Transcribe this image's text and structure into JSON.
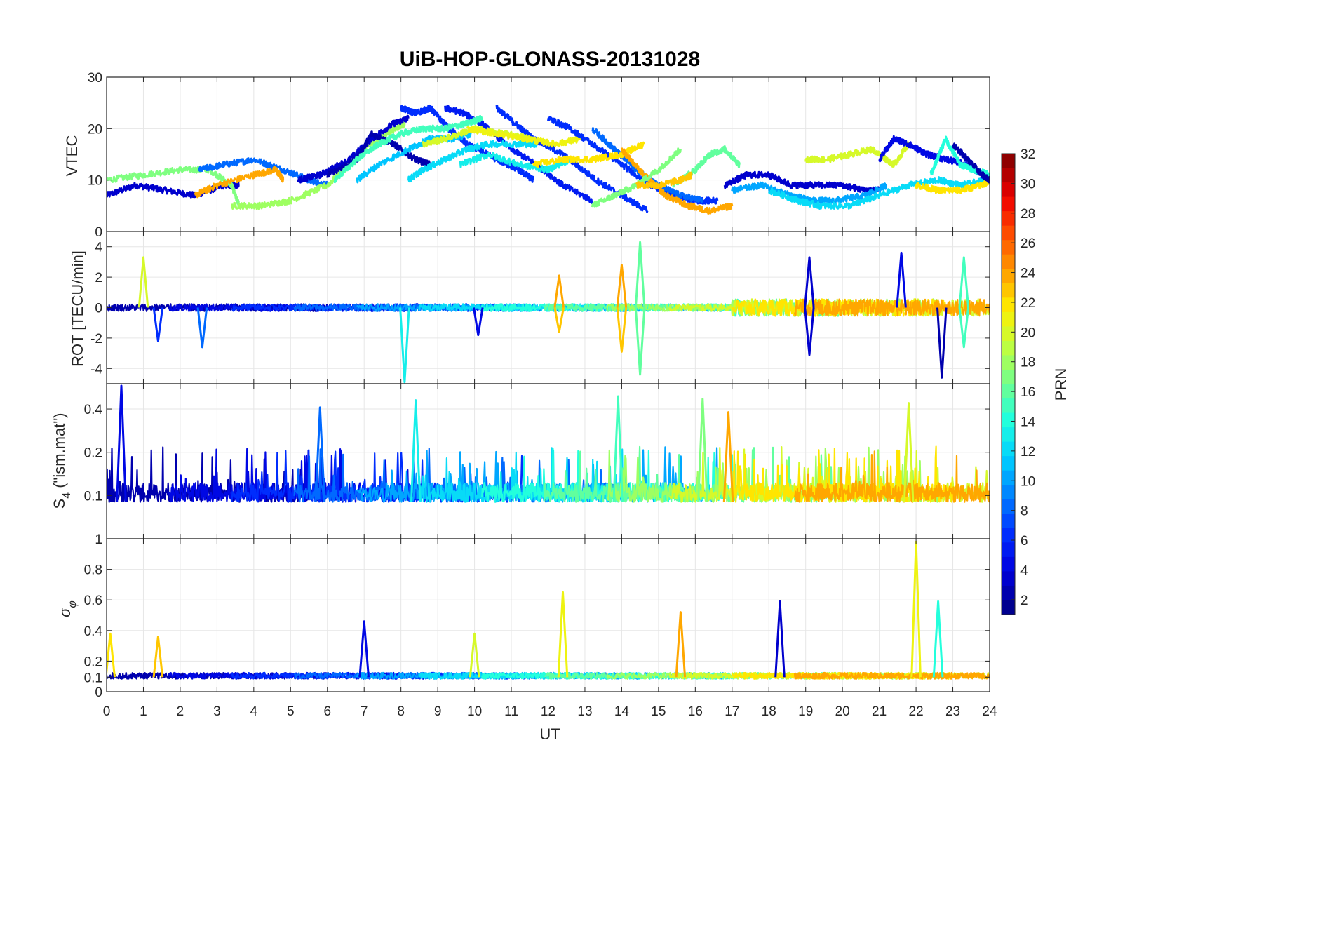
{
  "chart_data": {
    "type": "line",
    "title": "UiB-HOP-GLONASS-20131028",
    "xlabel": "UT",
    "xlim": [
      0,
      24
    ],
    "x_ticks": [
      "0",
      "1",
      "2",
      "3",
      "4",
      "5",
      "6",
      "7",
      "8",
      "9",
      "10",
      "11",
      "12",
      "13",
      "14",
      "15",
      "16",
      "17",
      "18",
      "19",
      "20",
      "21",
      "22",
      "23",
      "24"
    ],
    "colorbar": {
      "label": "PRN",
      "range": [
        1,
        32
      ],
      "ticks": [
        "2",
        "4",
        "6",
        "8",
        "10",
        "12",
        "14",
        "16",
        "18",
        "20",
        "22",
        "24",
        "26",
        "28",
        "30",
        "32"
      ],
      "colormap": [
        "#00008f",
        "#0000df",
        "#0030ff",
        "#0080ff",
        "#00cfff",
        "#20ffdf",
        "#70ff8f",
        "#bfff40",
        "#ffef00",
        "#ff9f00",
        "#ff5000",
        "#ef0000",
        "#8f0000"
      ]
    },
    "panels": [
      {
        "ylabel": "VTEC",
        "ylim": [
          0,
          30
        ],
        "y_ticks": [
          0,
          10,
          20,
          30
        ],
        "series": [
          {
            "prn": 3,
            "x": [
              0.0,
              0.8,
              1.6,
              2.4,
              3.2,
              3.6
            ],
            "y": [
              7,
              9,
              8,
              7,
              9,
              9
            ]
          },
          {
            "prn": 17,
            "x": [
              0.0,
              1.0,
              2.0,
              2.8,
              3.4,
              3.6
            ],
            "y": [
              10,
              11,
              12,
              12,
              9,
              5
            ]
          },
          {
            "prn": 8,
            "x": [
              2.5,
              3.2,
              4.0,
              4.8,
              5.5,
              6.0
            ],
            "y": [
              12,
              13,
              14,
              12,
              10,
              9
            ]
          },
          {
            "prn": 24,
            "x": [
              2.4,
              3.0,
              4.0,
              4.6,
              4.8
            ],
            "y": [
              7,
              9,
              11,
              12,
              10
            ]
          },
          {
            "prn": 18,
            "x": [
              3.4,
              4.2,
              5.0,
              6.0,
              6.6,
              7.0,
              7.6,
              8.1
            ],
            "y": [
              5,
              5,
              6,
              9,
              13,
              16,
              19,
              21
            ]
          },
          {
            "prn": 3,
            "x": [
              5.2,
              5.8,
              6.6,
              7.2,
              7.8,
              8.2
            ],
            "y": [
              10,
              11,
              14,
              18,
              21,
              22
            ]
          },
          {
            "prn": 2,
            "x": [
              6.0,
              6.8,
              7.2,
              7.8,
              8.4,
              8.8
            ],
            "y": [
              11,
              14,
              19,
              17,
              14,
              13
            ]
          },
          {
            "prn": 6,
            "x": [
              8.0,
              8.4,
              8.8,
              9.3,
              9.8,
              10.6,
              11.2,
              11.6
            ],
            "y": [
              24,
              23,
              24,
              20,
              17,
              14,
              12,
              10
            ]
          },
          {
            "prn": 5,
            "x": [
              9.2,
              9.7,
              10.2,
              11.0,
              11.7,
              12.4,
              13.2
            ],
            "y": [
              24,
              23,
              21,
              16,
              13,
              9,
              6
            ]
          },
          {
            "prn": 6,
            "x": [
              10.6,
              11.1,
              11.6,
              12.4,
              13.3,
              14.0,
              14.7
            ],
            "y": [
              24,
              21,
              18,
              15,
              10,
              7,
              4
            ]
          },
          {
            "prn": 15,
            "x": [
              6.2,
              6.8,
              7.4,
              8.0,
              8.6,
              9.2,
              9.8,
              10.2
            ],
            "y": [
              10,
              14,
              17,
              19,
              20,
              20,
              21,
              22
            ]
          },
          {
            "prn": 11,
            "x": [
              6.8,
              7.4,
              8.2,
              8.8,
              9.4,
              9.9
            ],
            "y": [
              10,
              13,
              16,
              18,
              18,
              19
            ]
          },
          {
            "prn": 12,
            "x": [
              8.2,
              8.6,
              9.2,
              9.8,
              10.4,
              11.2,
              11.7
            ],
            "y": [
              10,
              12,
              14,
              16,
              17,
              17,
              17
            ]
          },
          {
            "prn": 20,
            "x": [
              8.6,
              9.2,
              10.0,
              10.8,
              11.6
            ],
            "y": [
              17,
              18,
              20,
              19,
              18
            ]
          },
          {
            "prn": 21,
            "x": [
              9.8,
              10.6,
              11.4,
              12.2,
              12.9
            ],
            "y": [
              20,
              19,
              18,
              17,
              18
            ]
          },
          {
            "prn": 13,
            "x": [
              9.6,
              10.4,
              11.2,
              12.0,
              12.6
            ],
            "y": [
              13,
              15,
              13,
              12,
              14
            ]
          },
          {
            "prn": 6,
            "x": [
              12.0,
              12.6,
              13.4,
              14.2,
              14.8,
              15.4,
              16.0,
              16.6
            ],
            "y": [
              22,
              20,
              16,
              12,
              9,
              7,
              6,
              6
            ]
          },
          {
            "prn": 8,
            "x": [
              13.2,
              13.8,
              14.4,
              15.0,
              15.6,
              16.2
            ],
            "y": [
              20,
              16,
              12,
              9,
              7,
              6
            ]
          },
          {
            "prn": 22,
            "x": [
              11.6,
              12.4,
              13.2,
              14.0,
              14.6
            ],
            "y": [
              13,
              14,
              14,
              15,
              17
            ]
          },
          {
            "prn": 24,
            "x": [
              14.0,
              14.6,
              15.2,
              15.8,
              16.4,
              17.0
            ],
            "y": [
              16,
              11,
              7,
              5,
              4,
              5
            ]
          },
          {
            "prn": 17,
            "x": [
              13.2,
              13.8,
              14.4,
              15.0,
              15.6
            ],
            "y": [
              5,
              7,
              9,
              12,
              16
            ]
          },
          {
            "prn": 16,
            "x": [
              15.4,
              16.0,
              16.4,
              16.8,
              17.2
            ],
            "y": [
              9,
              12,
              15,
              16,
              13
            ]
          },
          {
            "prn": 23,
            "x": [
              14.4,
              15.0,
              15.6,
              15.9
            ],
            "y": [
              9,
              9,
              10,
              11
            ]
          },
          {
            "prn": 3,
            "x": [
              16.8,
              17.4,
              18.0,
              18.6,
              19.2,
              20.0,
              20.6,
              21.0
            ],
            "y": [
              9,
              11,
              11,
              9,
              9,
              9,
              8,
              8
            ]
          },
          {
            "prn": 10,
            "x": [
              17.0,
              17.8,
              18.6,
              19.2,
              19.8,
              20.6,
              21.2
            ],
            "y": [
              8,
              9,
              7,
              6,
              6,
              7,
              9
            ]
          },
          {
            "prn": 12,
            "x": [
              18.0,
              18.8,
              19.4,
              20.2,
              21.0,
              21.8,
              22.6,
              23.2,
              24.0
            ],
            "y": [
              8,
              6,
              5,
              5,
              7,
              9,
              10,
              9,
              10
            ]
          },
          {
            "prn": 20,
            "x": [
              19.0,
              19.6,
              20.2,
              20.8,
              21.4,
              21.8
            ],
            "y": [
              14,
              14,
              15,
              16,
              13,
              17
            ]
          },
          {
            "prn": 4,
            "x": [
              21.0,
              21.4,
              21.8,
              22.3,
              22.8,
              23.4,
              24.0
            ],
            "y": [
              14,
              18,
              17,
              15,
              14,
              13,
              10
            ]
          },
          {
            "prn": 14,
            "x": [
              22.4,
              22.8,
              23.2,
              23.6,
              24.0
            ],
            "y": [
              11,
              18,
              13,
              12,
              11
            ]
          },
          {
            "prn": 22,
            "x": [
              22.0,
              22.6,
              23.2,
              23.8,
              24.0
            ],
            "y": [
              9,
              8,
              8,
              9,
              10
            ]
          },
          {
            "prn": 2,
            "x": [
              23.0,
              23.4,
              23.8,
              24.0
            ],
            "y": [
              17,
              14,
              11,
              10
            ]
          }
        ]
      },
      {
        "ylabel": "ROT [TECU/min]",
        "ylim": [
          -5,
          5
        ],
        "y_ticks": [
          -4,
          -2,
          0,
          2,
          4
        ],
        "spikes": [
          {
            "prn": 20,
            "x": 1.0,
            "y": 3.3
          },
          {
            "prn": 6,
            "x": 1.4,
            "y": -2.2
          },
          {
            "prn": 8,
            "x": 2.6,
            "y": -2.6
          },
          {
            "prn": 13,
            "x": 8.1,
            "y": -4.9
          },
          {
            "prn": 4,
            "x": 10.1,
            "y": -1.8
          },
          {
            "prn": 24,
            "x": 12.3,
            "y": 2.1
          },
          {
            "prn": 23,
            "x": 12.3,
            "y": -1.6
          },
          {
            "prn": 24,
            "x": 14.0,
            "y": 2.8
          },
          {
            "prn": 23,
            "x": 14.0,
            "y": -2.9
          },
          {
            "prn": 16,
            "x": 14.5,
            "y": 4.3
          },
          {
            "prn": 16,
            "x": 14.5,
            "y": -4.4
          },
          {
            "prn": 3,
            "x": 19.1,
            "y": 3.3
          },
          {
            "prn": 3,
            "x": 19.1,
            "y": -3.1
          },
          {
            "prn": 4,
            "x": 21.6,
            "y": 3.6
          },
          {
            "prn": 2,
            "x": 22.7,
            "y": -4.6
          },
          {
            "prn": 15,
            "x": 23.3,
            "y": 3.3
          },
          {
            "prn": 15,
            "x": 23.3,
            "y": -2.6
          }
        ]
      },
      {
        "ylabel": "S4 (\"ism.mat\")",
        "ylim": [
          0.05,
          0.6
        ],
        "y_ticks": [
          0.1,
          0.2,
          0.4
        ],
        "spikes": [
          {
            "prn": 4,
            "x": 0.4,
            "y": 0.58
          },
          {
            "prn": 8,
            "x": 5.8,
            "y": 0.41
          },
          {
            "prn": 13,
            "x": 8.4,
            "y": 0.46
          },
          {
            "prn": 15,
            "x": 13.9,
            "y": 0.49
          },
          {
            "prn": 17,
            "x": 16.2,
            "y": 0.47
          },
          {
            "prn": 24,
            "x": 16.9,
            "y": 0.38
          },
          {
            "prn": 20,
            "x": 21.8,
            "y": 0.44
          }
        ]
      },
      {
        "ylabel": "σφ",
        "ylim": [
          0,
          1
        ],
        "y_ticks": [
          0,
          0.1,
          0.2,
          0.4,
          0.6,
          0.8,
          1
        ],
        "spikes": [
          {
            "prn": 22,
            "x": 0.1,
            "y": 0.38
          },
          {
            "prn": 23,
            "x": 1.4,
            "y": 0.36
          },
          {
            "prn": 4,
            "x": 7.0,
            "y": 0.46
          },
          {
            "prn": 20,
            "x": 10.0,
            "y": 0.38
          },
          {
            "prn": 21,
            "x": 12.4,
            "y": 0.65
          },
          {
            "prn": 24,
            "x": 15.6,
            "y": 0.52
          },
          {
            "prn": 3,
            "x": 18.3,
            "y": 0.59
          },
          {
            "prn": 21,
            "x": 22.0,
            "y": 0.98
          },
          {
            "prn": 14,
            "x": 22.6,
            "y": 0.59
          }
        ]
      }
    ]
  }
}
